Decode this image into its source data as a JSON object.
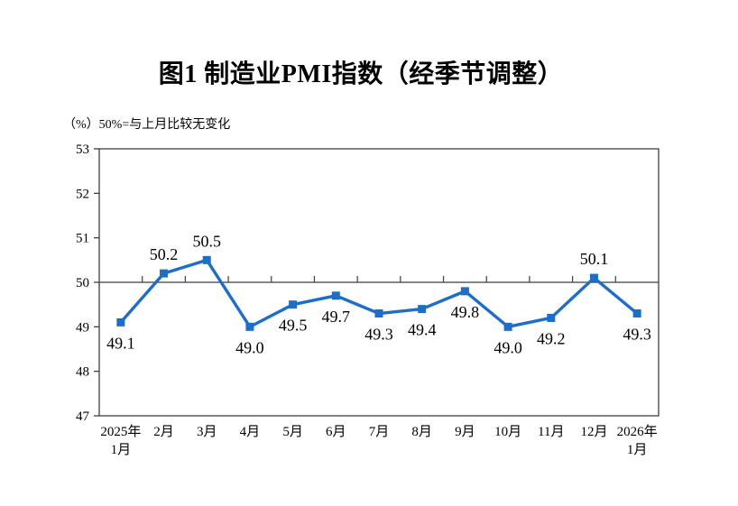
{
  "chart_data": {
    "type": "line",
    "title": "图1  制造业PMI指数（经季节调整）",
    "unit_note": "（%）50%=与上月比较无变化",
    "categories": [
      "2025年\n1月",
      "2月",
      "3月",
      "4月",
      "5月",
      "6月",
      "7月",
      "8月",
      "9月",
      "10月",
      "11月",
      "12月",
      "2026年\n1月"
    ],
    "values": [
      49.1,
      50.2,
      50.5,
      49.0,
      49.5,
      49.7,
      49.3,
      49.4,
      49.8,
      49.0,
      49.2,
      50.1,
      49.3
    ],
    "data_labels": [
      "49.1",
      "50.2",
      "50.5",
      "49.0",
      "49.5",
      "49.7",
      "49.3",
      "49.4",
      "49.8",
      "49.0",
      "49.2",
      "50.1",
      "49.3"
    ],
    "xlabel": "",
    "ylabel": "",
    "ylim": [
      47,
      53
    ],
    "y_ticks": [
      47,
      48,
      49,
      50,
      51,
      52,
      53
    ],
    "reference_line": 50,
    "grid": false,
    "legend": false,
    "line_color": "#1E6EC6",
    "marker": "square",
    "axis_color": "#3F3F3F",
    "label_color": "#000000",
    "background_color": "#FFFFFF"
  }
}
